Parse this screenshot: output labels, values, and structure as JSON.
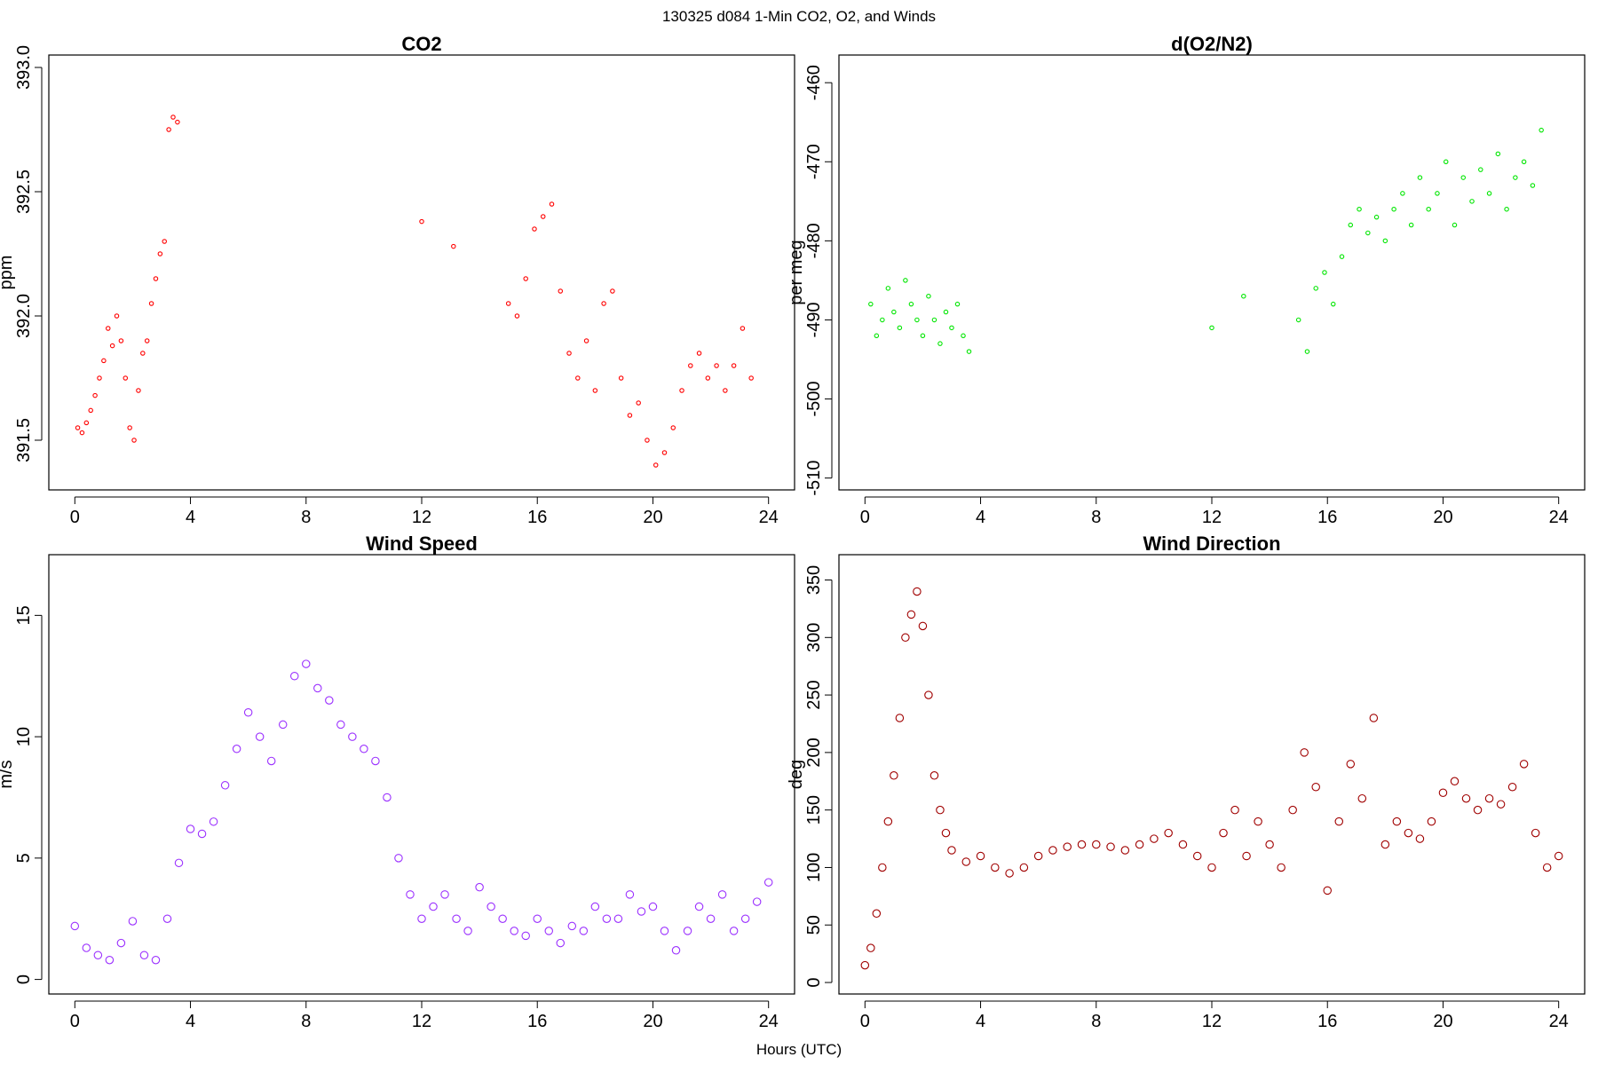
{
  "figure": {
    "title": "130325   d084   1-Min CO2, O2, and Winds",
    "xlabel": "Hours (UTC)"
  },
  "chart_data": [
    {
      "id": "co2",
      "type": "scatter",
      "title": "CO2",
      "xlabel": "",
      "ylabel": "ppm",
      "xlim": [
        -0.9,
        24.9
      ],
      "ylim": [
        391.3,
        393.05
      ],
      "xticks": [
        0,
        4,
        8,
        12,
        16,
        20,
        24
      ],
      "yticks": [
        391.5,
        392.0,
        392.5,
        393.0
      ],
      "ytick_labels": [
        "391.5",
        "392.0",
        "392.5",
        "393.0"
      ],
      "grid": false,
      "color": "#ff0000",
      "marker_size": "small",
      "x": [
        0.1,
        0.25,
        0.4,
        0.55,
        0.7,
        0.85,
        1.0,
        1.15,
        1.3,
        1.45,
        1.6,
        1.75,
        1.9,
        2.05,
        2.2,
        2.35,
        2.5,
        2.65,
        2.8,
        2.95,
        3.1,
        3.25,
        3.4,
        3.55,
        12.0,
        13.1,
        15.0,
        15.3,
        15.6,
        15.9,
        16.2,
        16.5,
        16.8,
        17.1,
        17.4,
        17.7,
        18.0,
        18.3,
        18.6,
        18.9,
        19.2,
        19.5,
        19.8,
        20.1,
        20.4,
        20.7,
        21.0,
        21.3,
        21.6,
        21.9,
        22.2,
        22.5,
        22.8,
        23.1,
        23.4
      ],
      "y": [
        391.55,
        391.53,
        391.57,
        391.62,
        391.68,
        391.75,
        391.82,
        391.95,
        391.88,
        392.0,
        391.9,
        391.75,
        391.55,
        391.5,
        391.7,
        391.85,
        391.9,
        392.05,
        392.15,
        392.25,
        392.3,
        392.75,
        392.8,
        392.78,
        392.38,
        392.28,
        392.05,
        392.0,
        392.15,
        392.35,
        392.4,
        392.45,
        392.1,
        391.85,
        391.75,
        391.9,
        391.7,
        392.05,
        392.1,
        391.75,
        391.6,
        391.65,
        391.5,
        391.4,
        391.45,
        391.55,
        391.7,
        391.8,
        391.85,
        391.75,
        391.8,
        391.7,
        391.8,
        391.95,
        391.75
      ]
    },
    {
      "id": "o2n2",
      "type": "scatter",
      "title": "d(O2/N2)",
      "xlabel": "",
      "ylabel": "per meg",
      "xlim": [
        -0.9,
        24.9
      ],
      "ylim": [
        -511.5,
        -456.5
      ],
      "xticks": [
        0,
        4,
        8,
        12,
        16,
        20,
        24
      ],
      "yticks": [
        -510,
        -500,
        -490,
        -480,
        -470,
        -460
      ],
      "ytick_labels": [
        "-510",
        "-500",
        "-490",
        "-480",
        "-470",
        "-460"
      ],
      "grid": false,
      "color": "#00e600",
      "marker_size": "small",
      "x": [
        0.2,
        0.4,
        0.6,
        0.8,
        1.0,
        1.2,
        1.4,
        1.6,
        1.8,
        2.0,
        2.2,
        2.4,
        2.6,
        2.8,
        3.0,
        3.2,
        3.4,
        3.6,
        12.0,
        13.1,
        15.0,
        15.3,
        15.6,
        15.9,
        16.2,
        16.5,
        16.8,
        17.1,
        17.4,
        17.7,
        18.0,
        18.3,
        18.6,
        18.9,
        19.2,
        19.5,
        19.8,
        20.1,
        20.4,
        20.7,
        21.0,
        21.3,
        21.6,
        21.9,
        22.2,
        22.5,
        22.8,
        23.1,
        23.4
      ],
      "y": [
        -488,
        -492,
        -490,
        -486,
        -489,
        -491,
        -485,
        -488,
        -490,
        -492,
        -487,
        -490,
        -493,
        -489,
        -491,
        -488,
        -492,
        -494,
        -491,
        -487,
        -490,
        -494,
        -486,
        -484,
        -488,
        -482,
        -478,
        -476,
        -479,
        -477,
        -480,
        -476,
        -474,
        -478,
        -472,
        -476,
        -474,
        -470,
        -478,
        -472,
        -475,
        -471,
        -474,
        -469,
        -476,
        -472,
        -470,
        -473,
        -466
      ]
    },
    {
      "id": "wspd",
      "type": "scatter",
      "title": "Wind Speed",
      "xlabel": "",
      "ylabel": "m/s",
      "xlim": [
        -0.9,
        24.9
      ],
      "ylim": [
        -0.6,
        17.5
      ],
      "xticks": [
        0,
        4,
        8,
        12,
        16,
        20,
        24
      ],
      "yticks": [
        0,
        5,
        10,
        15
      ],
      "ytick_labels": [
        "0",
        "5",
        "10",
        "15"
      ],
      "grid": false,
      "color": "#9b30ff",
      "marker_size": "large",
      "x": [
        0.0,
        0.4,
        0.8,
        1.2,
        1.6,
        2.0,
        2.4,
        2.8,
        3.2,
        3.6,
        4.0,
        4.4,
        4.8,
        5.2,
        5.6,
        6.0,
        6.4,
        6.8,
        7.2,
        7.6,
        8.0,
        8.4,
        8.8,
        9.2,
        9.6,
        10.0,
        10.4,
        10.8,
        11.2,
        11.6,
        12.0,
        12.4,
        12.8,
        13.2,
        13.6,
        14.0,
        14.4,
        14.8,
        15.2,
        15.6,
        16.0,
        16.4,
        16.8,
        17.2,
        17.6,
        18.0,
        18.4,
        18.8,
        19.2,
        19.6,
        20.0,
        20.4,
        20.8,
        21.2,
        21.6,
        22.0,
        22.4,
        22.8,
        23.2,
        23.6,
        24.0
      ],
      "y": [
        2.2,
        1.3,
        1.0,
        0.8,
        1.5,
        2.4,
        1.0,
        0.8,
        2.5,
        4.8,
        6.2,
        6.0,
        6.5,
        8.0,
        9.5,
        11.0,
        10.0,
        9.0,
        10.5,
        12.5,
        13.0,
        12.0,
        11.5,
        10.5,
        10.0,
        9.5,
        9.0,
        7.5,
        5.0,
        3.5,
        2.5,
        3.0,
        3.5,
        2.5,
        2.0,
        3.8,
        3.0,
        2.5,
        2.0,
        1.8,
        2.5,
        2.0,
        1.5,
        2.2,
        2.0,
        3.0,
        2.5,
        2.5,
        3.5,
        2.8,
        3.0,
        2.0,
        1.2,
        2.0,
        3.0,
        2.5,
        3.5,
        2.0,
        2.5,
        3.2,
        4.0
      ]
    },
    {
      "id": "wdir",
      "type": "scatter",
      "title": "Wind Direction",
      "xlabel": "",
      "ylabel": "deg",
      "xlim": [
        -0.9,
        24.9
      ],
      "ylim": [
        -10,
        372
      ],
      "xticks": [
        0,
        4,
        8,
        12,
        16,
        20,
        24
      ],
      "yticks": [
        0,
        50,
        100,
        150,
        200,
        250,
        300,
        350
      ],
      "ytick_labels": [
        "0",
        "50",
        "100",
        "150",
        "200",
        "250",
        "300",
        "350"
      ],
      "grid": false,
      "color": "#a00000",
      "marker_size": "large",
      "x": [
        0.0,
        0.2,
        0.4,
        0.6,
        0.8,
        1.0,
        1.2,
        1.4,
        1.6,
        1.8,
        2.0,
        2.2,
        2.4,
        2.6,
        2.8,
        3.0,
        3.5,
        4.0,
        4.5,
        5.0,
        5.5,
        6.0,
        6.5,
        7.0,
        7.5,
        8.0,
        8.5,
        9.0,
        9.5,
        10.0,
        10.5,
        11.0,
        11.5,
        12.0,
        12.4,
        12.8,
        13.2,
        13.6,
        14.0,
        14.4,
        14.8,
        15.2,
        15.6,
        16.0,
        16.4,
        16.8,
        17.2,
        17.6,
        18.0,
        18.4,
        18.8,
        19.2,
        19.6,
        20.0,
        20.4,
        20.8,
        21.2,
        21.6,
        22.0,
        22.4,
        22.8,
        23.2,
        23.6,
        24.0
      ],
      "y": [
        15,
        30,
        60,
        100,
        140,
        180,
        230,
        300,
        320,
        340,
        310,
        250,
        180,
        150,
        130,
        115,
        105,
        110,
        100,
        95,
        100,
        110,
        115,
        118,
        120,
        120,
        118,
        115,
        120,
        125,
        130,
        120,
        110,
        100,
        130,
        150,
        110,
        140,
        120,
        100,
        150,
        200,
        170,
        80,
        140,
        190,
        160,
        230,
        120,
        140,
        130,
        125,
        140,
        165,
        175,
        160,
        150,
        160,
        155,
        170,
        190,
        130,
        100,
        110
      ]
    }
  ]
}
